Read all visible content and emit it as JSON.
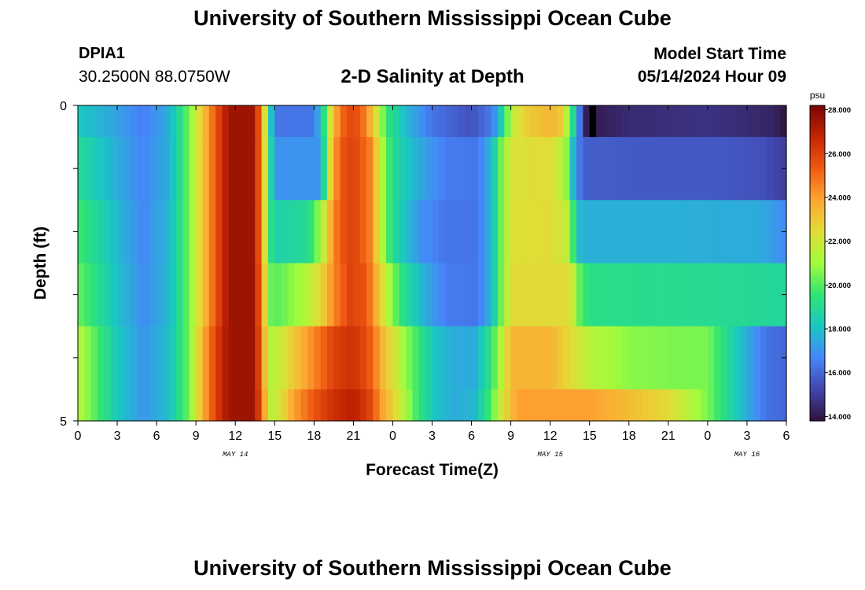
{
  "header": {
    "title": "University of Southern Mississippi Ocean Cube",
    "station_id": "DPIA1",
    "coordinates": "30.2500N  88.0750W",
    "subtitle": "2-D Salinity at Depth",
    "model_start_label": "Model Start Time",
    "model_start_value": "05/14/2024 Hour 09"
  },
  "footer": {
    "title": "University of Southern Mississippi Ocean Cube"
  },
  "colors": {
    "colormap": [
      "#30123b",
      "#4146ad",
      "#4686fb",
      "#1ac7c2",
      "#2ee474",
      "#a2fc3c",
      "#e1dd37",
      "#fea632",
      "#f05b12",
      "#c42503",
      "#7a0403"
    ],
    "missing": "#000000"
  },
  "chart_data": {
    "type": "heatmap",
    "xlabel": "Forecast Time(Z)",
    "ylabel": "Depth (ft)",
    "x_tick_labels": [
      "0",
      "3",
      "6",
      "9",
      "12",
      "15",
      "18",
      "21",
      "0",
      "3",
      "6",
      "9",
      "12",
      "15",
      "18",
      "21",
      "0",
      "3",
      "6"
    ],
    "y_tick_labels": [
      "0",
      "5"
    ],
    "y_range": [
      0,
      5
    ],
    "day_labels": [
      {
        "text": "MAY 14",
        "hour": 12
      },
      {
        "text": "MAY 15",
        "hour": 36
      },
      {
        "text": "MAY 16",
        "hour": 51
      }
    ],
    "colorbar": {
      "unit": "psu",
      "min": 13.8,
      "max": 28.2,
      "tick_values": [
        14,
        16,
        18,
        20,
        22,
        24,
        26,
        28
      ],
      "tick_labels": [
        "14.000",
        "16.000",
        "18.000",
        "20.000",
        "22.000",
        "24.000",
        "26.000",
        "28.000"
      ]
    },
    "x_range_hours": [
      0,
      54
    ],
    "layers": [
      {
        "depth": [
          0.0,
          0.5
        ],
        "knots": [
          [
            0,
            18.2
          ],
          [
            3,
            17.3
          ],
          [
            5,
            16.5
          ],
          [
            7,
            17.6
          ],
          [
            8.5,
            20.5
          ],
          [
            9.5,
            23
          ],
          [
            10.5,
            25.5
          ],
          [
            11.5,
            27.5
          ],
          [
            13.5,
            27.5
          ],
          [
            14.3,
            22
          ],
          [
            14.6,
            19
          ],
          [
            15,
            16.3
          ],
          [
            18,
            16.3
          ],
          [
            18.6,
            18.5
          ],
          [
            19.2,
            22
          ],
          [
            20,
            25
          ],
          [
            21,
            26
          ],
          [
            22,
            24.5
          ],
          [
            22.8,
            22
          ],
          [
            23.6,
            19.5
          ],
          [
            25,
            17.8
          ],
          [
            27,
            16.3
          ],
          [
            30,
            15.5
          ],
          [
            31.6,
            16.5
          ],
          [
            32.3,
            18.5
          ],
          [
            33,
            21.5
          ],
          [
            34,
            22.8
          ],
          [
            36,
            23.5
          ],
          [
            37,
            22.8
          ],
          [
            37.5,
            20
          ],
          [
            38,
            18
          ],
          [
            38.3,
            16
          ],
          [
            38.5,
            14.3
          ],
          [
            39,
            14
          ],
          [
            42,
            14.5
          ],
          [
            48,
            14.7
          ],
          [
            51,
            14.5
          ],
          [
            53,
            14.3
          ],
          [
            54,
            13.8
          ]
        ],
        "missing_hours": [
          38.8,
          39.3
        ]
      },
      {
        "depth": [
          0.5,
          1.5
        ],
        "knots": [
          [
            0,
            19
          ],
          [
            3,
            17.5
          ],
          [
            5,
            16.7
          ],
          [
            7,
            17.6
          ],
          [
            8.5,
            20.5
          ],
          [
            9.5,
            23
          ],
          [
            10.5,
            25.5
          ],
          [
            11.5,
            27.5
          ],
          [
            13.5,
            27.5
          ],
          [
            14.3,
            22
          ],
          [
            14.6,
            19.5
          ],
          [
            15,
            17
          ],
          [
            18.5,
            17
          ],
          [
            19.2,
            22.5
          ],
          [
            20,
            25.5
          ],
          [
            21,
            26
          ],
          [
            22.2,
            24.8
          ],
          [
            23,
            22
          ],
          [
            24,
            19
          ],
          [
            26,
            17.5
          ],
          [
            28,
            16.5
          ],
          [
            30.5,
            16.3
          ],
          [
            31.6,
            18
          ],
          [
            32.3,
            20.5
          ],
          [
            33,
            22.2
          ],
          [
            36,
            22.5
          ],
          [
            37.2,
            21
          ],
          [
            37.6,
            18.5
          ],
          [
            38,
            16.8
          ],
          [
            38.5,
            15.8
          ],
          [
            42,
            15.7
          ],
          [
            48,
            15.7
          ],
          [
            52,
            15.5
          ],
          [
            54,
            15
          ]
        ]
      },
      {
        "depth": [
          1.5,
          2.5
        ],
        "knots": [
          [
            0,
            19.8
          ],
          [
            3,
            17.8
          ],
          [
            5,
            16.7
          ],
          [
            7,
            17.8
          ],
          [
            8.5,
            20.5
          ],
          [
            9.5,
            23
          ],
          [
            10.5,
            25.5
          ],
          [
            11.5,
            27.5
          ],
          [
            13.5,
            27.5
          ],
          [
            14.3,
            22
          ],
          [
            14.6,
            19.7
          ],
          [
            15,
            18.5
          ],
          [
            17.5,
            19
          ],
          [
            18.5,
            21
          ],
          [
            19.2,
            23.5
          ],
          [
            20,
            25.5
          ],
          [
            21,
            26
          ],
          [
            22.2,
            24.8
          ],
          [
            23,
            22
          ],
          [
            24,
            19
          ],
          [
            26,
            17
          ],
          [
            28,
            16.3
          ],
          [
            30.5,
            16.3
          ],
          [
            31.6,
            18
          ],
          [
            32.3,
            20.5
          ],
          [
            33,
            22.3
          ],
          [
            36,
            22.5
          ],
          [
            37.5,
            21.5
          ],
          [
            38,
            18
          ],
          [
            38.5,
            17.6
          ],
          [
            45,
            17.6
          ],
          [
            52,
            17.5
          ],
          [
            54,
            16.8
          ]
        ]
      },
      {
        "depth": [
          2.5,
          3.5
        ],
        "knots": [
          [
            0,
            20.3
          ],
          [
            3,
            18
          ],
          [
            5,
            16.8
          ],
          [
            7,
            17.8
          ],
          [
            8.5,
            20.5
          ],
          [
            9.5,
            23
          ],
          [
            10.5,
            25.5
          ],
          [
            11.5,
            27.5
          ],
          [
            13.5,
            27.5
          ],
          [
            14.3,
            22.5
          ],
          [
            14.6,
            20.5
          ],
          [
            15,
            20
          ],
          [
            17.2,
            21.2
          ],
          [
            18.5,
            22.5
          ],
          [
            19.5,
            24.5
          ],
          [
            20.8,
            26
          ],
          [
            22,
            25.5
          ],
          [
            23,
            23
          ],
          [
            24,
            20.5
          ],
          [
            25,
            19
          ],
          [
            26.5,
            17.5
          ],
          [
            28,
            16.5
          ],
          [
            30.5,
            16.3
          ],
          [
            31.6,
            18
          ],
          [
            32.3,
            20.5
          ],
          [
            33,
            22.5
          ],
          [
            37.5,
            22.5
          ],
          [
            38.3,
            20
          ],
          [
            39,
            19.2
          ],
          [
            50,
            19
          ],
          [
            54,
            18.8
          ]
        ]
      },
      {
        "depth": [
          3.5,
          4.5
        ],
        "knots": [
          [
            0,
            21.5
          ],
          [
            3,
            18.2
          ],
          [
            5,
            17
          ],
          [
            7,
            18
          ],
          [
            8.5,
            20.5
          ],
          [
            9.5,
            23.5
          ],
          [
            10.5,
            26
          ],
          [
            11.5,
            27.5
          ],
          [
            13.5,
            27.5
          ],
          [
            14.3,
            23
          ],
          [
            14.6,
            21.5
          ],
          [
            15,
            21.5
          ],
          [
            16.5,
            23
          ],
          [
            18,
            24.5
          ],
          [
            19.5,
            26
          ],
          [
            21,
            26.5
          ],
          [
            22.2,
            25.5
          ],
          [
            23.2,
            23.5
          ],
          [
            24.5,
            21.5
          ],
          [
            26,
            19.5
          ],
          [
            27.3,
            18
          ],
          [
            28.8,
            17.5
          ],
          [
            30.3,
            17.5
          ],
          [
            31.5,
            19.5
          ],
          [
            32.3,
            21.5
          ],
          [
            33,
            23.5
          ],
          [
            36,
            23.5
          ],
          [
            37.5,
            22.5
          ],
          [
            39,
            21.5
          ],
          [
            42,
            20.7
          ],
          [
            46,
            20.5
          ],
          [
            48,
            20.5
          ],
          [
            49.5,
            19
          ],
          [
            51,
            17.5
          ],
          [
            52.5,
            16.2
          ],
          [
            54,
            16
          ]
        ]
      },
      {
        "depth": [
          4.5,
          5.0
        ],
        "knots": [
          [
            0,
            21.5
          ],
          [
            3,
            18.2
          ],
          [
            5,
            17
          ],
          [
            7,
            18
          ],
          [
            8.5,
            20.5
          ],
          [
            9.5,
            23.5
          ],
          [
            10.5,
            26
          ],
          [
            11.5,
            27.5
          ],
          [
            13.5,
            27.5
          ],
          [
            14.3,
            23.5
          ],
          [
            14.6,
            21.5
          ],
          [
            15.3,
            22
          ],
          [
            16.5,
            24
          ],
          [
            18,
            25.5
          ],
          [
            19.5,
            26.5
          ],
          [
            21,
            27
          ],
          [
            22.2,
            26
          ],
          [
            23.2,
            24
          ],
          [
            24.5,
            22
          ],
          [
            26,
            19.5
          ],
          [
            27.3,
            18
          ],
          [
            28.8,
            17.5
          ],
          [
            30.3,
            17.8
          ],
          [
            31.5,
            20
          ],
          [
            32.5,
            22.5
          ],
          [
            33.5,
            24
          ],
          [
            39,
            24
          ],
          [
            42,
            23.3
          ],
          [
            45,
            22.5
          ],
          [
            46.5,
            21.5
          ],
          [
            48,
            20.5
          ],
          [
            49.5,
            19
          ],
          [
            51,
            17.5
          ],
          [
            52.5,
            16.2
          ],
          [
            54,
            16
          ]
        ]
      }
    ]
  }
}
